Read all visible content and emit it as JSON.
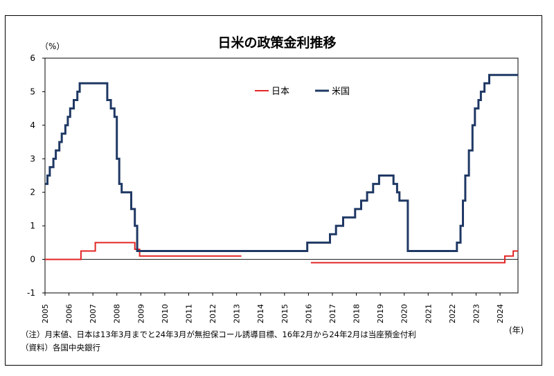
{
  "chart_data": {
    "type": "line",
    "title": "日米の政策金利推移",
    "ylabel": "（%）",
    "xunit_label": "(年)",
    "ylim": [
      -1,
      6
    ],
    "y_ticks": [
      -1,
      0,
      1,
      2,
      3,
      4,
      5,
      6
    ],
    "xlim": [
      2005.0,
      2024.75
    ],
    "x_ticks": [
      2005,
      2006,
      2007,
      2008,
      2009,
      2010,
      2011,
      2012,
      2013,
      2014,
      2015,
      2016,
      2017,
      2018,
      2019,
      2020,
      2021,
      2022,
      2023,
      2024
    ],
    "legend_position": "top-center",
    "zero_line": true,
    "series": [
      {
        "name": "日本",
        "color": "#e32626",
        "step": true,
        "segments": [
          [
            [
              2005.0,
              0.0
            ],
            [
              2006.5,
              0.0
            ],
            [
              2006.5,
              0.25
            ],
            [
              2007.1,
              0.25
            ],
            [
              2007.1,
              0.5
            ],
            [
              2008.75,
              0.5
            ],
            [
              2008.75,
              0.3
            ],
            [
              2008.95,
              0.3
            ],
            [
              2008.95,
              0.1
            ],
            [
              2013.2,
              0.1
            ]
          ],
          [
            [
              2016.1,
              -0.1
            ],
            [
              2024.2,
              -0.1
            ],
            [
              2024.2,
              0.1
            ],
            [
              2024.55,
              0.1
            ],
            [
              2024.55,
              0.25
            ],
            [
              2024.75,
              0.25
            ]
          ]
        ]
      },
      {
        "name": "米国",
        "color": "#1f3864",
        "step": true,
        "segments": [
          [
            [
              2005.0,
              2.25
            ],
            [
              2005.1,
              2.25
            ],
            [
              2005.1,
              2.5
            ],
            [
              2005.2,
              2.5
            ],
            [
              2005.2,
              2.75
            ],
            [
              2005.35,
              2.75
            ],
            [
              2005.35,
              3.0
            ],
            [
              2005.45,
              3.0
            ],
            [
              2005.45,
              3.25
            ],
            [
              2005.6,
              3.25
            ],
            [
              2005.6,
              3.5
            ],
            [
              2005.7,
              3.5
            ],
            [
              2005.7,
              3.75
            ],
            [
              2005.85,
              3.75
            ],
            [
              2005.85,
              4.0
            ],
            [
              2005.95,
              4.0
            ],
            [
              2005.95,
              4.25
            ],
            [
              2006.05,
              4.25
            ],
            [
              2006.05,
              4.5
            ],
            [
              2006.2,
              4.5
            ],
            [
              2006.2,
              4.75
            ],
            [
              2006.35,
              4.75
            ],
            [
              2006.35,
              5.0
            ],
            [
              2006.45,
              5.0
            ],
            [
              2006.45,
              5.25
            ],
            [
              2007.6,
              5.25
            ],
            [
              2007.6,
              4.75
            ],
            [
              2007.75,
              4.75
            ],
            [
              2007.75,
              4.5
            ],
            [
              2007.9,
              4.5
            ],
            [
              2007.9,
              4.25
            ],
            [
              2008.0,
              4.25
            ],
            [
              2008.0,
              3.0
            ],
            [
              2008.1,
              3.0
            ],
            [
              2008.1,
              2.25
            ],
            [
              2008.2,
              2.25
            ],
            [
              2008.2,
              2.0
            ],
            [
              2008.6,
              2.0
            ],
            [
              2008.6,
              1.5
            ],
            [
              2008.75,
              1.5
            ],
            [
              2008.75,
              1.0
            ],
            [
              2008.85,
              1.0
            ],
            [
              2008.85,
              0.25
            ],
            [
              2015.95,
              0.25
            ],
            [
              2015.95,
              0.5
            ],
            [
              2016.9,
              0.5
            ],
            [
              2016.9,
              0.75
            ],
            [
              2017.15,
              0.75
            ],
            [
              2017.15,
              1.0
            ],
            [
              2017.45,
              1.0
            ],
            [
              2017.45,
              1.25
            ],
            [
              2017.95,
              1.25
            ],
            [
              2017.95,
              1.5
            ],
            [
              2018.2,
              1.5
            ],
            [
              2018.2,
              1.75
            ],
            [
              2018.45,
              1.75
            ],
            [
              2018.45,
              2.0
            ],
            [
              2018.7,
              2.0
            ],
            [
              2018.7,
              2.25
            ],
            [
              2018.95,
              2.25
            ],
            [
              2018.95,
              2.5
            ],
            [
              2019.55,
              2.5
            ],
            [
              2019.55,
              2.25
            ],
            [
              2019.7,
              2.25
            ],
            [
              2019.7,
              2.0
            ],
            [
              2019.8,
              2.0
            ],
            [
              2019.8,
              1.75
            ],
            [
              2020.15,
              1.75
            ],
            [
              2020.15,
              0.25
            ],
            [
              2022.2,
              0.25
            ],
            [
              2022.2,
              0.5
            ],
            [
              2022.35,
              0.5
            ],
            [
              2022.35,
              1.0
            ],
            [
              2022.45,
              1.0
            ],
            [
              2022.45,
              1.75
            ],
            [
              2022.55,
              1.75
            ],
            [
              2022.55,
              2.5
            ],
            [
              2022.7,
              2.5
            ],
            [
              2022.7,
              3.25
            ],
            [
              2022.85,
              3.25
            ],
            [
              2022.85,
              4.0
            ],
            [
              2022.95,
              4.0
            ],
            [
              2022.95,
              4.5
            ],
            [
              2023.1,
              4.5
            ],
            [
              2023.1,
              4.75
            ],
            [
              2023.2,
              4.75
            ],
            [
              2023.2,
              5.0
            ],
            [
              2023.35,
              5.0
            ],
            [
              2023.35,
              5.25
            ],
            [
              2023.55,
              5.25
            ],
            [
              2023.55,
              5.5
            ],
            [
              2024.75,
              5.5
            ]
          ]
        ]
      }
    ]
  },
  "notes": {
    "note1": "（注）月末値、日本は13年3月までと24年3月が無担保コール誘導目標、16年2月から24年2月は当座預金付利",
    "note2": "（資料）各国中央銀行"
  }
}
